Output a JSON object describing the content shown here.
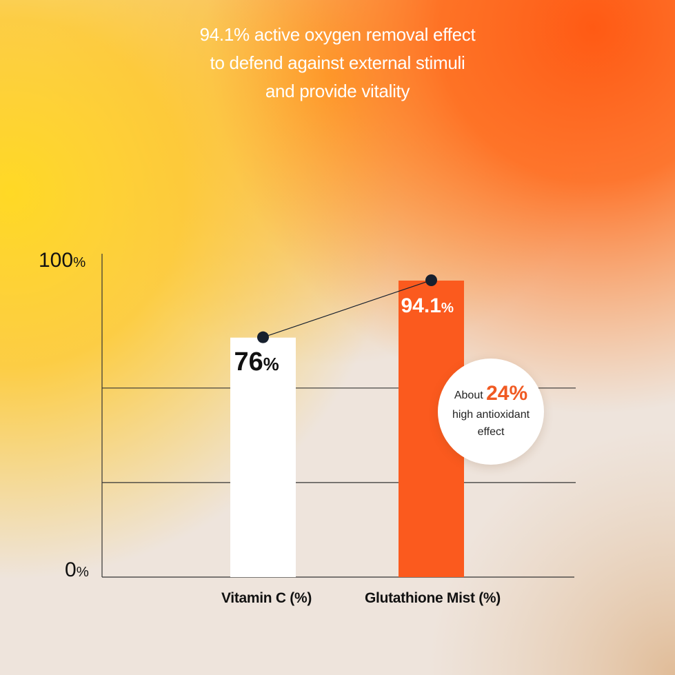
{
  "headline": [
    "94.1% active oxygen removal effect",
    "to defend against external stimuli",
    "and provide vitality"
  ],
  "colors": {
    "bar_vitamin_c": "#ffffff",
    "bar_glutathione": "#fb5a1e",
    "marker": "#17202e",
    "accent": "#f05a22"
  },
  "chart_data": {
    "type": "bar",
    "categories": [
      "Vitamin C (%)",
      "Glutathione Mist (%)"
    ],
    "values": [
      76,
      94.1
    ],
    "value_labels": [
      "76",
      "94.1"
    ],
    "value_unit": "%",
    "ylim": [
      0,
      100
    ],
    "y_ticks": [
      {
        "value": 0,
        "label": "0"
      },
      {
        "value": 100,
        "label": "100"
      }
    ],
    "gridlines": [
      30,
      60
    ],
    "connector_line": true,
    "annotation": {
      "prefix": "About",
      "value": "24%",
      "line2": "high antioxidant",
      "line3": "effect"
    }
  }
}
